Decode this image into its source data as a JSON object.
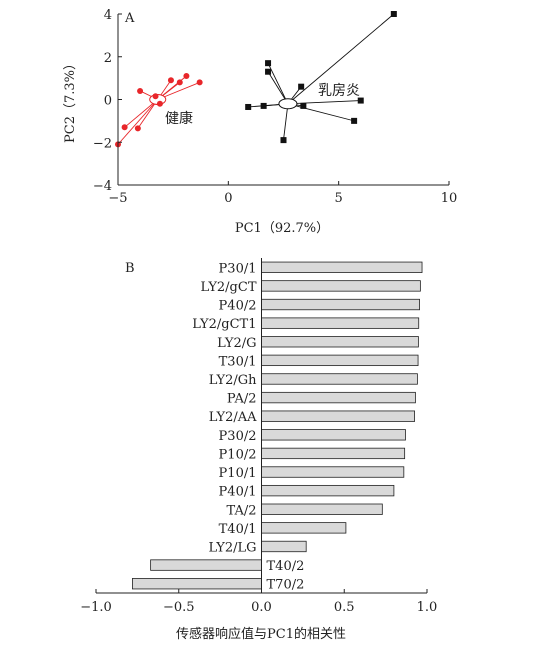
{
  "chart_data": [
    {
      "type": "scatter",
      "panel_label": "A",
      "xlabel": "PC1（92.7%）",
      "ylabel": "PC2（7.3%）",
      "xlim": [
        -5,
        10
      ],
      "ylim": [
        -4,
        4
      ],
      "xticks": [
        "−5",
        "0",
        "5",
        "10"
      ],
      "yticks": [
        "4",
        "2",
        "0",
        "−2",
        "−4"
      ],
      "xtick_values": [
        -5,
        0,
        5,
        10
      ],
      "ytick_values": [
        4,
        2,
        0,
        -2,
        -4
      ],
      "grid": false,
      "series": [
        {
          "name": "健康",
          "color": "#e8262a",
          "marker": "circle",
          "centroid": [
            -3.2,
            0.0
          ],
          "points": [
            [
              -4.0,
              0.4
            ],
            [
              -1.9,
              1.1
            ],
            [
              -1.3,
              0.8
            ],
            [
              -2.6,
              0.9
            ],
            [
              -2.2,
              0.8
            ],
            [
              -3.3,
              0.15
            ],
            [
              -3.1,
              -0.2
            ],
            [
              -4.7,
              -1.3
            ],
            [
              -4.1,
              -1.35
            ],
            [
              -5.0,
              -2.1
            ]
          ]
        },
        {
          "name": "乳房炎",
          "color": "#111111",
          "marker": "square",
          "centroid": [
            2.7,
            -0.2
          ],
          "points": [
            [
              7.5,
              4.0
            ],
            [
              1.8,
              1.7
            ],
            [
              1.8,
              1.3
            ],
            [
              3.3,
              0.6
            ],
            [
              6.0,
              -0.05
            ],
            [
              5.7,
              -1.0
            ],
            [
              3.4,
              -0.3
            ],
            [
              1.6,
              -0.3
            ],
            [
              0.9,
              -0.35
            ],
            [
              2.5,
              -1.9
            ]
          ]
        }
      ]
    },
    {
      "type": "bar",
      "orientation": "horizontal",
      "panel_label": "B",
      "xlabel": "传感器响应值与PC1的相关性",
      "xlim": [
        -1.0,
        1.0
      ],
      "xticks": [
        "−1.0",
        "−0.5",
        "0.0",
        "0.5",
        "1.0"
      ],
      "xtick_values": [
        -1.0,
        -0.5,
        0.0,
        0.5,
        1.0
      ],
      "bar_color": "#d9d9d9",
      "categories": [
        "P30/1",
        "LY2/gCT",
        "P40/2",
        "LY2/gCT1",
        "LY2/G",
        "T30/1",
        "LY2/Gh",
        "PA/2",
        "LY2/AA",
        "P30/2",
        "P10/2",
        "P10/1",
        "P40/1",
        "TA/2",
        "T40/1",
        "LY2/LG",
        "T40/2",
        "T70/2"
      ],
      "values": [
        0.97,
        0.96,
        0.955,
        0.95,
        0.948,
        0.946,
        0.942,
        0.93,
        0.925,
        0.87,
        0.865,
        0.86,
        0.8,
        0.73,
        0.51,
        0.27,
        -0.67,
        -0.78
      ]
    }
  ]
}
